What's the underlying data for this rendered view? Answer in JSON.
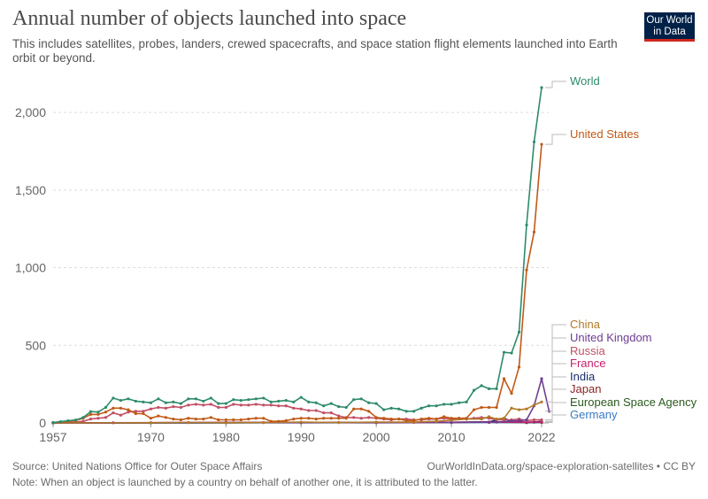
{
  "header": {
    "title": "Annual number of objects launched into space",
    "subtitle": "This includes satellites, probes, landers, crewed spacecrafts, and space station flight elements launched into Earth orbit or beyond.",
    "logo_line1": "Our World",
    "logo_line2": "in Data"
  },
  "footer": {
    "source": "Source: United Nations Office for Outer Space Affairs",
    "url": "OurWorldInData.org/space-exploration-satellites • CC BY",
    "note": "Note: When an object is launched by a country on behalf of another one, it is attributed to the latter."
  },
  "chart_data": {
    "type": "line",
    "x_tick_labels": [
      "1957",
      "1970",
      "1980",
      "1990",
      "2000",
      "2010",
      "2022"
    ],
    "y_tick_labels": [
      "0",
      "500",
      "1,000",
      "1,500",
      "2,000"
    ],
    "y_ticks": [
      0,
      500,
      1000,
      1500,
      2000
    ],
    "xlim": [
      1957,
      2022
    ],
    "ylim": [
      0,
      2200
    ],
    "grid": "horizontal dashed",
    "series": [
      {
        "name": "World",
        "color": "#2e8b6a",
        "points": [
          [
            1957,
            2
          ],
          [
            1958,
            8
          ],
          [
            1959,
            14
          ],
          [
            1960,
            19
          ],
          [
            1961,
            35
          ],
          [
            1962,
            73
          ],
          [
            1963,
            70
          ],
          [
            1964,
            100
          ],
          [
            1965,
            160
          ],
          [
            1966,
            145
          ],
          [
            1967,
            155
          ],
          [
            1968,
            140
          ],
          [
            1969,
            135
          ],
          [
            1970,
            130
          ],
          [
            1971,
            155
          ],
          [
            1972,
            130
          ],
          [
            1973,
            135
          ],
          [
            1974,
            125
          ],
          [
            1975,
            155
          ],
          [
            1976,
            155
          ],
          [
            1977,
            140
          ],
          [
            1978,
            160
          ],
          [
            1979,
            125
          ],
          [
            1980,
            125
          ],
          [
            1981,
            150
          ],
          [
            1982,
            145
          ],
          [
            1983,
            150
          ],
          [
            1984,
            155
          ],
          [
            1985,
            160
          ],
          [
            1986,
            135
          ],
          [
            1987,
            140
          ],
          [
            1988,
            145
          ],
          [
            1989,
            135
          ],
          [
            1990,
            165
          ],
          [
            1991,
            135
          ],
          [
            1992,
            130
          ],
          [
            1993,
            110
          ],
          [
            1994,
            125
          ],
          [
            1995,
            105
          ],
          [
            1996,
            100
          ],
          [
            1997,
            150
          ],
          [
            1998,
            155
          ],
          [
            1999,
            130
          ],
          [
            2000,
            125
          ],
          [
            2001,
            85
          ],
          [
            2002,
            95
          ],
          [
            2003,
            90
          ],
          [
            2004,
            75
          ],
          [
            2005,
            75
          ],
          [
            2006,
            95
          ],
          [
            2007,
            110
          ],
          [
            2008,
            110
          ],
          [
            2009,
            120
          ],
          [
            2010,
            120
          ],
          [
            2011,
            130
          ],
          [
            2012,
            135
          ],
          [
            2013,
            210
          ],
          [
            2014,
            240
          ],
          [
            2015,
            220
          ],
          [
            2016,
            220
          ],
          [
            2017,
            455
          ],
          [
            2018,
            450
          ],
          [
            2019,
            585
          ],
          [
            2020,
            1275
          ],
          [
            2021,
            1810
          ],
          [
            2022,
            2160
          ]
        ]
      },
      {
        "name": "United States",
        "color": "#c05a17",
        "points": [
          [
            1957,
            0
          ],
          [
            1958,
            5
          ],
          [
            1959,
            10
          ],
          [
            1960,
            16
          ],
          [
            1961,
            30
          ],
          [
            1962,
            55
          ],
          [
            1963,
            55
          ],
          [
            1964,
            70
          ],
          [
            1965,
            95
          ],
          [
            1966,
            95
          ],
          [
            1967,
            85
          ],
          [
            1968,
            60
          ],
          [
            1969,
            60
          ],
          [
            1970,
            30
          ],
          [
            1971,
            45
          ],
          [
            1972,
            35
          ],
          [
            1973,
            25
          ],
          [
            1974,
            20
          ],
          [
            1975,
            30
          ],
          [
            1976,
            25
          ],
          [
            1977,
            25
          ],
          [
            1978,
            35
          ],
          [
            1979,
            20
          ],
          [
            1980,
            20
          ],
          [
            1981,
            20
          ],
          [
            1982,
            20
          ],
          [
            1983,
            25
          ],
          [
            1984,
            30
          ],
          [
            1985,
            30
          ],
          [
            1986,
            10
          ],
          [
            1987,
            10
          ],
          [
            1988,
            15
          ],
          [
            1989,
            25
          ],
          [
            1990,
            30
          ],
          [
            1991,
            30
          ],
          [
            1992,
            25
          ],
          [
            1993,
            30
          ],
          [
            1994,
            30
          ],
          [
            1995,
            30
          ],
          [
            1996,
            30
          ],
          [
            1997,
            90
          ],
          [
            1998,
            90
          ],
          [
            1999,
            75
          ],
          [
            2000,
            35
          ],
          [
            2001,
            30
          ],
          [
            2002,
            25
          ],
          [
            2003,
            25
          ],
          [
            2004,
            15
          ],
          [
            2005,
            15
          ],
          [
            2006,
            25
          ],
          [
            2007,
            30
          ],
          [
            2008,
            25
          ],
          [
            2009,
            40
          ],
          [
            2010,
            30
          ],
          [
            2011,
            30
          ],
          [
            2012,
            30
          ],
          [
            2013,
            85
          ],
          [
            2014,
            100
          ],
          [
            2015,
            100
          ],
          [
            2016,
            100
          ],
          [
            2017,
            285
          ],
          [
            2018,
            190
          ],
          [
            2019,
            360
          ],
          [
            2020,
            985
          ],
          [
            2021,
            1230
          ],
          [
            2022,
            1795
          ]
        ]
      },
      {
        "name": "China",
        "color": "#b07a2a",
        "points": [
          [
            1957,
            0
          ],
          [
            1970,
            1
          ],
          [
            1975,
            3
          ],
          [
            1980,
            1
          ],
          [
            1985,
            2
          ],
          [
            1990,
            5
          ],
          [
            1995,
            2
          ],
          [
            2000,
            5
          ],
          [
            2005,
            5
          ],
          [
            2008,
            10
          ],
          [
            2010,
            17
          ],
          [
            2012,
            25
          ],
          [
            2014,
            25
          ],
          [
            2015,
            40
          ],
          [
            2016,
            25
          ],
          [
            2017,
            30
          ],
          [
            2018,
            95
          ],
          [
            2019,
            85
          ],
          [
            2020,
            90
          ],
          [
            2021,
            115
          ],
          [
            2022,
            135
          ]
        ]
      },
      {
        "name": "United Kingdom",
        "color": "#6d3e91",
        "points": [
          [
            1957,
            0
          ],
          [
            1970,
            1
          ],
          [
            1990,
            2
          ],
          [
            2000,
            3
          ],
          [
            2010,
            3
          ],
          [
            2016,
            5
          ],
          [
            2018,
            12
          ],
          [
            2019,
            15
          ],
          [
            2020,
            20
          ],
          [
            2021,
            110
          ],
          [
            2022,
            285
          ],
          [
            2023,
            75
          ]
        ]
      },
      {
        "name": "Russia",
        "color": "#c15065",
        "points": [
          [
            1957,
            2
          ],
          [
            1958,
            3
          ],
          [
            1959,
            4
          ],
          [
            1960,
            5
          ],
          [
            1961,
            10
          ],
          [
            1962,
            25
          ],
          [
            1963,
            30
          ],
          [
            1964,
            35
          ],
          [
            1965,
            65
          ],
          [
            1966,
            50
          ],
          [
            1967,
            70
          ],
          [
            1968,
            75
          ],
          [
            1969,
            75
          ],
          [
            1970,
            90
          ],
          [
            1971,
            100
          ],
          [
            1972,
            95
          ],
          [
            1973,
            105
          ],
          [
            1974,
            100
          ],
          [
            1975,
            115
          ],
          [
            1976,
            120
          ],
          [
            1977,
            115
          ],
          [
            1978,
            120
          ],
          [
            1979,
            100
          ],
          [
            1980,
            100
          ],
          [
            1981,
            120
          ],
          [
            1982,
            115
          ],
          [
            1983,
            115
          ],
          [
            1984,
            120
          ],
          [
            1985,
            115
          ],
          [
            1986,
            115
          ],
          [
            1987,
            110
          ],
          [
            1988,
            110
          ],
          [
            1989,
            95
          ],
          [
            1990,
            90
          ],
          [
            1991,
            80
          ],
          [
            1992,
            80
          ],
          [
            1993,
            65
          ],
          [
            1994,
            65
          ],
          [
            1995,
            45
          ],
          [
            1996,
            35
          ],
          [
            1997,
            35
          ],
          [
            1998,
            30
          ],
          [
            1999,
            35
          ],
          [
            2000,
            30
          ],
          [
            2001,
            25
          ],
          [
            2002,
            20
          ],
          [
            2003,
            25
          ],
          [
            2004,
            25
          ],
          [
            2005,
            20
          ],
          [
            2006,
            20
          ],
          [
            2007,
            25
          ],
          [
            2008,
            25
          ],
          [
            2009,
            30
          ],
          [
            2010,
            25
          ],
          [
            2011,
            30
          ],
          [
            2012,
            25
          ],
          [
            2013,
            30
          ],
          [
            2014,
            35
          ],
          [
            2015,
            30
          ],
          [
            2016,
            20
          ],
          [
            2017,
            20
          ],
          [
            2018,
            20
          ],
          [
            2019,
            25
          ],
          [
            2020,
            15
          ],
          [
            2021,
            20
          ],
          [
            2022,
            20
          ]
        ]
      },
      {
        "name": "France",
        "color": "#c71f6b",
        "points": [
          [
            1957,
            0
          ],
          [
            1965,
            1
          ],
          [
            1975,
            2
          ],
          [
            1985,
            2
          ],
          [
            1995,
            3
          ],
          [
            2005,
            3
          ],
          [
            2015,
            5
          ],
          [
            2020,
            5
          ],
          [
            2022,
            5
          ]
        ]
      },
      {
        "name": "India",
        "color": "#1a2f6b",
        "points": [
          [
            1957,
            0
          ],
          [
            1980,
            1
          ],
          [
            1990,
            2
          ],
          [
            2000,
            2
          ],
          [
            2010,
            4
          ],
          [
            2015,
            6
          ],
          [
            2017,
            30
          ],
          [
            2018,
            10
          ],
          [
            2019,
            10
          ],
          [
            2020,
            2
          ],
          [
            2021,
            5
          ],
          [
            2022,
            10
          ]
        ]
      },
      {
        "name": "Japan",
        "color": "#8b2323",
        "points": [
          [
            1957,
            0
          ],
          [
            1970,
            1
          ],
          [
            1980,
            3
          ],
          [
            1990,
            3
          ],
          [
            2000,
            2
          ],
          [
            2010,
            4
          ],
          [
            2015,
            5
          ],
          [
            2020,
            4
          ],
          [
            2022,
            5
          ]
        ]
      },
      {
        "name": "European Space Agency",
        "color": "#2b5a1e",
        "points": [
          [
            1957,
            0
          ],
          [
            1980,
            1
          ],
          [
            1990,
            2
          ],
          [
            2000,
            3
          ],
          [
            2010,
            4
          ],
          [
            2015,
            5
          ],
          [
            2020,
            3
          ],
          [
            2022,
            3
          ]
        ]
      },
      {
        "name": "Germany",
        "color": "#3b78c2",
        "points": [
          [
            1957,
            0
          ],
          [
            1970,
            0
          ],
          [
            1990,
            1
          ],
          [
            2000,
            1
          ],
          [
            2010,
            2
          ],
          [
            2015,
            3
          ],
          [
            2020,
            2
          ],
          [
            2022,
            3
          ]
        ]
      }
    ]
  }
}
